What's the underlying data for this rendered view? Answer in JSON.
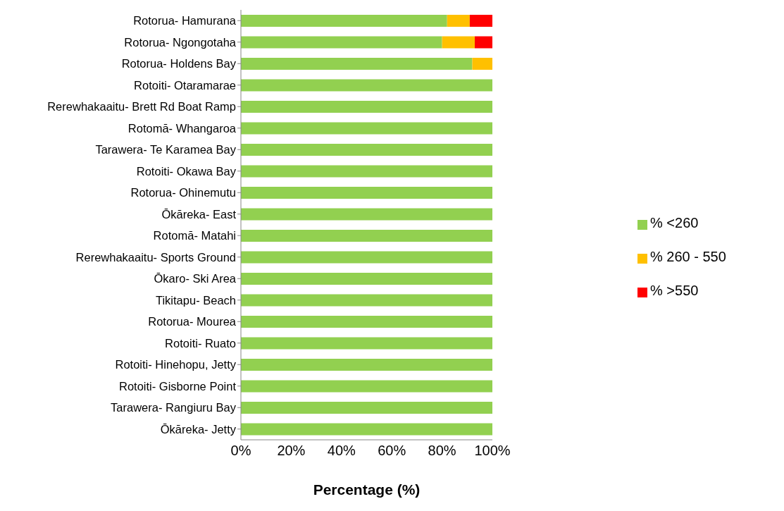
{
  "chart_data": {
    "type": "bar",
    "orientation": "horizontal",
    "stacked": true,
    "xlabel": "Percentage (%)",
    "categories": [
      "Rotorua- Hamurana",
      "Rotorua- Ngongotaha",
      "Rotorua- Holdens Bay",
      "Rotoiti- Otaramarae",
      "Rerewhakaaitu- Brett Rd Boat Ramp",
      "Rotomā- Whangaroa",
      "Tarawera- Te Karamea Bay",
      "Rotoiti- Okawa Bay",
      "Rotorua- Ohinemutu",
      "Ōkāreka- East",
      "Rotomā- Matahi",
      "Rerewhakaaitu- Sports Ground",
      "Ōkaro- Ski Area",
      "Tikitapu- Beach",
      "Rotorua- Mourea",
      "Rotoiti- Ruato",
      "Rotoiti- Hinehopu, Jetty",
      "Rotoiti- Gisborne Point",
      "Tarawera- Rangiuru Bay",
      "Ōkāreka- Jetty"
    ],
    "series": [
      {
        "name": "% <260",
        "color": "#92d050",
        "values": [
          82,
          80,
          92,
          100,
          100,
          100,
          100,
          100,
          100,
          100,
          100,
          100,
          100,
          100,
          100,
          100,
          100,
          100,
          100,
          100
        ]
      },
      {
        "name": "% 260 - 550",
        "color": "#ffc000",
        "values": [
          9,
          13,
          8,
          0,
          0,
          0,
          0,
          0,
          0,
          0,
          0,
          0,
          0,
          0,
          0,
          0,
          0,
          0,
          0,
          0
        ]
      },
      {
        "name": "% >550",
        "color": "#ff0000",
        "values": [
          9,
          7,
          0,
          0,
          0,
          0,
          0,
          0,
          0,
          0,
          0,
          0,
          0,
          0,
          0,
          0,
          0,
          0,
          0,
          0
        ]
      }
    ],
    "xlim": [
      0,
      100
    ],
    "xticks": [
      {
        "value": 0,
        "label": "0%"
      },
      {
        "value": 20,
        "label": "20%"
      },
      {
        "value": 40,
        "label": "40%"
      },
      {
        "value": 60,
        "label": "60%"
      },
      {
        "value": 80,
        "label": "80%"
      },
      {
        "value": 100,
        "label": "100%"
      }
    ],
    "grid": false,
    "legend": "right"
  }
}
